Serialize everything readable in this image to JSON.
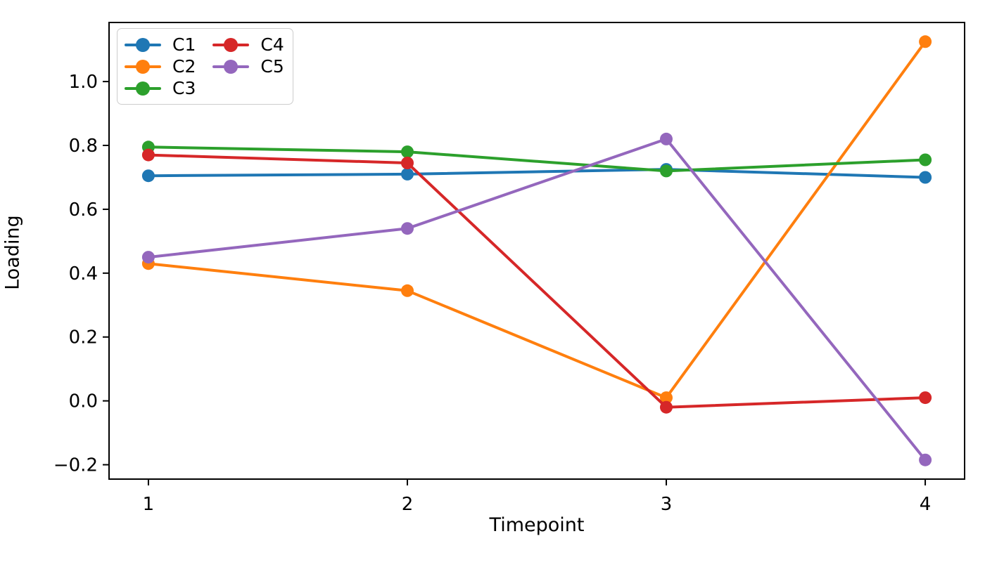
{
  "chart_data": {
    "type": "line",
    "x": [
      1,
      2,
      3,
      4
    ],
    "xticks": [
      1,
      2,
      3,
      4
    ],
    "yticks": [
      -0.2,
      0.0,
      0.2,
      0.4,
      0.6,
      0.8,
      1.0
    ],
    "xlim": [
      0.848,
      4.152
    ],
    "ylim": [
      -0.245,
      1.185
    ],
    "xlabel": "Timepoint",
    "ylabel": "Loading",
    "grid": false,
    "legend_position": "upper-left",
    "legend_columns": 2,
    "series": [
      {
        "name": "C1",
        "color": "#1f77b4",
        "values": [
          0.705,
          0.71,
          0.725,
          0.7
        ]
      },
      {
        "name": "C2",
        "color": "#ff7f0e",
        "values": [
          0.43,
          0.345,
          0.01,
          1.125
        ]
      },
      {
        "name": "C3",
        "color": "#2ca02c",
        "values": [
          0.795,
          0.78,
          0.72,
          0.755
        ]
      },
      {
        "name": "C4",
        "color": "#d62728",
        "values": [
          0.77,
          0.745,
          -0.02,
          0.01
        ]
      },
      {
        "name": "C5",
        "color": "#9467bd",
        "values": [
          0.45,
          0.54,
          0.82,
          -0.185
        ]
      }
    ],
    "style": {
      "line_width": 4,
      "marker_radius": 9,
      "axis_color": "#000000",
      "background": "#ffffff"
    }
  }
}
